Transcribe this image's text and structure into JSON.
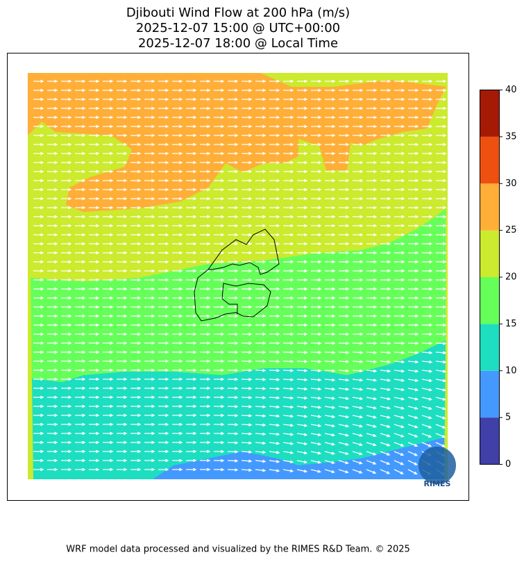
{
  "title": [
    "Djibouti Wind Flow at 200 hPa (m/s)",
    "2025-12-07 15:00 @ UTC+00:00",
    "2025-12-07 18:00 @ Local Time"
  ],
  "colorbar": {
    "ticks": [
      0,
      5,
      10,
      15,
      20,
      25,
      30,
      35,
      40
    ],
    "colors": [
      "#4040a8",
      "#4499ff",
      "#1ddec0",
      "#66ff5a",
      "#ccea2e",
      "#ffae38",
      "#ee5010",
      "#a51a05"
    ]
  },
  "logo": "RIMES",
  "footer": "WRF model data processed and visualized by the RIMES R&D Team. © 2025"
}
